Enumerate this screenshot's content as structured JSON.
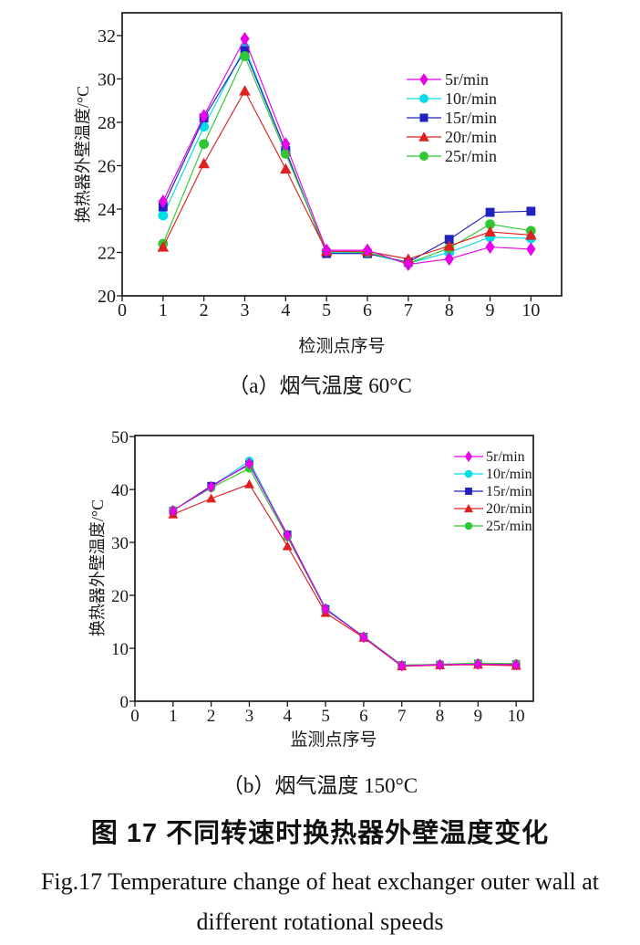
{
  "figure": {
    "caption_a": "（a）烟气温度 60°C",
    "caption_b": "（b）烟气温度 150°C",
    "title_zh": "图 17  不同转速时换热器外壁温度变化",
    "title_en_line1": "Fig.17 Temperature change of heat exchanger outer wall at",
    "title_en_line2": "different rotational speeds"
  },
  "chart_data": [
    {
      "id": "a",
      "type": "line",
      "title": "(a) 烟气温度 60°C",
      "xlabel": "检测点序号",
      "ylabel": "换热器外壁温度/°C",
      "x": [
        1,
        2,
        3,
        4,
        5,
        6,
        7,
        8,
        9,
        10
      ],
      "xticks": [
        0,
        1,
        2,
        3,
        4,
        5,
        6,
        7,
        8,
        9,
        10
      ],
      "yticks": [
        20,
        22,
        24,
        26,
        28,
        30,
        32
      ],
      "xlim": [
        0,
        10.75
      ],
      "ylim": [
        20,
        33.05
      ],
      "grid": false,
      "legend_position": "upper right",
      "series": [
        {
          "name": "5r/min",
          "marker": "diamond",
          "color": "#E800E8",
          "values": [
            24.35,
            28.3,
            31.85,
            27.0,
            22.1,
            22.1,
            21.45,
            21.7,
            22.25,
            22.15
          ]
        },
        {
          "name": "10r/min",
          "marker": "circle",
          "color": "#00DDE6",
          "values": [
            23.7,
            27.8,
            31.45,
            26.7,
            22.0,
            21.95,
            21.5,
            22.0,
            22.7,
            22.65
          ]
        },
        {
          "name": "15r/min",
          "marker": "square",
          "color": "#2121BD",
          "values": [
            24.1,
            28.2,
            31.3,
            26.7,
            21.95,
            21.95,
            21.55,
            22.6,
            23.85,
            23.9
          ]
        },
        {
          "name": "20r/min",
          "marker": "triangle",
          "color": "#DF2020",
          "values": [
            22.25,
            26.1,
            29.45,
            25.85,
            22.05,
            22.05,
            21.7,
            22.3,
            22.95,
            22.8
          ]
        },
        {
          "name": "25r/min",
          "marker": "circle",
          "color": "#2FC832",
          "values": [
            22.4,
            27.0,
            31.05,
            26.55,
            22.05,
            22.0,
            21.5,
            22.2,
            23.3,
            23.0
          ]
        }
      ]
    },
    {
      "id": "b",
      "type": "line",
      "title": "(b) 烟气温度 150°C",
      "xlabel": "监测点序号",
      "ylabel": "换热器外壁温度/°C",
      "x": [
        1,
        2,
        3,
        4,
        5,
        6,
        7,
        8,
        9,
        10
      ],
      "xticks": [
        0,
        1,
        2,
        3,
        4,
        5,
        6,
        7,
        8,
        9,
        10
      ],
      "yticks": [
        0,
        10,
        20,
        30,
        40,
        50
      ],
      "xlim": [
        0,
        10.45
      ],
      "ylim": [
        0,
        50.2
      ],
      "grid": false,
      "legend_position": "upper right",
      "series": [
        {
          "name": "5r/min",
          "marker": "diamond",
          "color": "#E800E8",
          "values": [
            36.0,
            40.5,
            44.9,
            31.3,
            17.4,
            12.1,
            6.7,
            6.9,
            7.0,
            6.9
          ]
        },
        {
          "name": "10r/min",
          "marker": "circle",
          "color": "#00DDE6",
          "values": [
            36.1,
            40.5,
            45.4,
            31.4,
            17.6,
            12.2,
            6.8,
            6.9,
            7.1,
            7.0
          ]
        },
        {
          "name": "15r/min",
          "marker": "square",
          "color": "#2121BD",
          "values": [
            36.0,
            40.7,
            44.7,
            31.5,
            17.4,
            12.2,
            6.8,
            6.9,
            7.1,
            7.0
          ]
        },
        {
          "name": "20r/min",
          "marker": "triangle",
          "color": "#DF2020",
          "values": [
            35.3,
            38.3,
            41.0,
            29.3,
            16.7,
            12.0,
            6.6,
            6.8,
            6.9,
            6.7
          ]
        },
        {
          "name": "25r/min",
          "marker": "circle",
          "color": "#2FC832",
          "values": [
            36.1,
            40.3,
            44.0,
            31.0,
            17.3,
            12.2,
            6.8,
            7.0,
            7.2,
            7.1
          ]
        }
      ]
    }
  ]
}
